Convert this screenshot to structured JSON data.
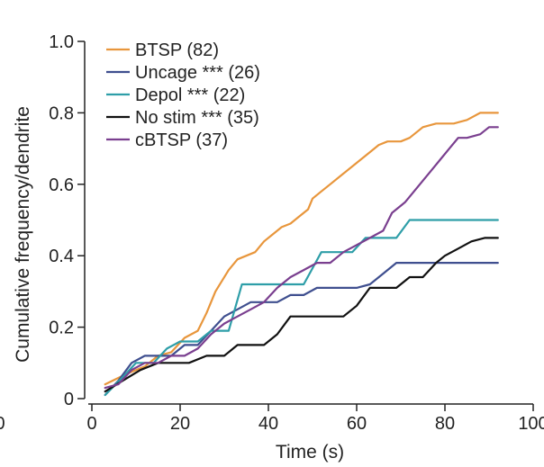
{
  "chart_data": {
    "type": "line",
    "title": "",
    "xlabel": "Time (s)",
    "ylabel": "Cumulative frequency/dendrite",
    "xlim": [
      0,
      100
    ],
    "ylim": [
      0,
      1.0
    ],
    "x_ticks": [
      0,
      20,
      40,
      60,
      80,
      100
    ],
    "x_tick_labels": [
      "0",
      "20",
      "40",
      "60",
      "80",
      "100"
    ],
    "stray_left_tick_label": "0",
    "y_ticks": [
      0,
      0.2,
      0.4,
      0.6,
      0.8,
      1.0
    ],
    "y_tick_labels": [
      "0",
      "0.2",
      "0.4",
      "0.6",
      "0.8",
      "1.0"
    ],
    "grid": false,
    "legend_position": "top-left",
    "series": [
      {
        "name": "BTSP (82)",
        "color": "#e8963c",
        "points": [
          [
            3,
            0.04
          ],
          [
            8,
            0.07
          ],
          [
            12,
            0.09
          ],
          [
            15,
            0.12
          ],
          [
            18,
            0.13
          ],
          [
            21,
            0.17
          ],
          [
            24,
            0.19
          ],
          [
            26,
            0.24
          ],
          [
            28,
            0.3
          ],
          [
            31,
            0.36
          ],
          [
            33,
            0.39
          ],
          [
            35,
            0.4
          ],
          [
            37,
            0.41
          ],
          [
            39,
            0.44
          ],
          [
            41,
            0.46
          ],
          [
            43,
            0.48
          ],
          [
            45,
            0.49
          ],
          [
            47,
            0.51
          ],
          [
            49,
            0.53
          ],
          [
            50,
            0.56
          ],
          [
            52,
            0.58
          ],
          [
            54,
            0.6
          ],
          [
            57,
            0.63
          ],
          [
            60,
            0.66
          ],
          [
            63,
            0.69
          ],
          [
            65,
            0.71
          ],
          [
            67,
            0.72
          ],
          [
            70,
            0.72
          ],
          [
            72,
            0.73
          ],
          [
            75,
            0.76
          ],
          [
            78,
            0.77
          ],
          [
            82,
            0.77
          ],
          [
            85,
            0.78
          ],
          [
            88,
            0.8
          ],
          [
            91,
            0.8
          ],
          [
            92,
            0.8
          ]
        ]
      },
      {
        "name": "Uncage *** (26)",
        "color": "#3f4f8f",
        "points": [
          [
            3,
            0.01
          ],
          [
            6,
            0.05
          ],
          [
            9,
            0.1
          ],
          [
            12,
            0.12
          ],
          [
            15,
            0.12
          ],
          [
            18,
            0.12
          ],
          [
            21,
            0.15
          ],
          [
            24,
            0.15
          ],
          [
            27,
            0.19
          ],
          [
            30,
            0.23
          ],
          [
            33,
            0.25
          ],
          [
            36,
            0.27
          ],
          [
            39,
            0.27
          ],
          [
            42,
            0.27
          ],
          [
            45,
            0.29
          ],
          [
            48,
            0.29
          ],
          [
            51,
            0.31
          ],
          [
            54,
            0.31
          ],
          [
            57,
            0.31
          ],
          [
            60,
            0.31
          ],
          [
            63,
            0.32
          ],
          [
            66,
            0.35
          ],
          [
            69,
            0.38
          ],
          [
            72,
            0.38
          ],
          [
            75,
            0.38
          ],
          [
            78,
            0.38
          ],
          [
            81,
            0.38
          ],
          [
            84,
            0.38
          ],
          [
            88,
            0.38
          ],
          [
            92,
            0.38
          ]
        ]
      },
      {
        "name": "Depol *** (22)",
        "color": "#2e9ea8",
        "points": [
          [
            3,
            0.01
          ],
          [
            7,
            0.06
          ],
          [
            10,
            0.1
          ],
          [
            14,
            0.1
          ],
          [
            17,
            0.14
          ],
          [
            20,
            0.16
          ],
          [
            24,
            0.16
          ],
          [
            27,
            0.19
          ],
          [
            31,
            0.19
          ],
          [
            34,
            0.32
          ],
          [
            38,
            0.32
          ],
          [
            41,
            0.32
          ],
          [
            45,
            0.32
          ],
          [
            48,
            0.32
          ],
          [
            52,
            0.41
          ],
          [
            55,
            0.41
          ],
          [
            59,
            0.41
          ],
          [
            62,
            0.45
          ],
          [
            65,
            0.45
          ],
          [
            69,
            0.45
          ],
          [
            72,
            0.5
          ],
          [
            76,
            0.5
          ],
          [
            80,
            0.5
          ],
          [
            84,
            0.5
          ],
          [
            88,
            0.5
          ],
          [
            92,
            0.5
          ]
        ]
      },
      {
        "name": "No stim *** (35)",
        "color": "#111111",
        "points": [
          [
            3,
            0.02
          ],
          [
            7,
            0.05
          ],
          [
            11,
            0.08
          ],
          [
            15,
            0.1
          ],
          [
            18,
            0.1
          ],
          [
            22,
            0.1
          ],
          [
            26,
            0.12
          ],
          [
            30,
            0.12
          ],
          [
            33,
            0.15
          ],
          [
            36,
            0.15
          ],
          [
            39,
            0.15
          ],
          [
            42,
            0.18
          ],
          [
            45,
            0.23
          ],
          [
            48,
            0.23
          ],
          [
            51,
            0.23
          ],
          [
            54,
            0.23
          ],
          [
            57,
            0.23
          ],
          [
            60,
            0.26
          ],
          [
            63,
            0.31
          ],
          [
            66,
            0.31
          ],
          [
            69,
            0.31
          ],
          [
            72,
            0.34
          ],
          [
            75,
            0.34
          ],
          [
            78,
            0.38
          ],
          [
            80,
            0.4
          ],
          [
            83,
            0.42
          ],
          [
            86,
            0.44
          ],
          [
            89,
            0.45
          ],
          [
            92,
            0.45
          ]
        ]
      },
      {
        "name": "cBTSP (37)",
        "color": "#7a3f8f",
        "points": [
          [
            3,
            0.03
          ],
          [
            6,
            0.04
          ],
          [
            9,
            0.08
          ],
          [
            12,
            0.1
          ],
          [
            15,
            0.1
          ],
          [
            18,
            0.12
          ],
          [
            21,
            0.12
          ],
          [
            24,
            0.14
          ],
          [
            27,
            0.18
          ],
          [
            30,
            0.21
          ],
          [
            33,
            0.23
          ],
          [
            36,
            0.25
          ],
          [
            39,
            0.27
          ],
          [
            42,
            0.31
          ],
          [
            45,
            0.34
          ],
          [
            48,
            0.36
          ],
          [
            51,
            0.38
          ],
          [
            54,
            0.38
          ],
          [
            57,
            0.41
          ],
          [
            60,
            0.43
          ],
          [
            63,
            0.45
          ],
          [
            66,
            0.47
          ],
          [
            68,
            0.52
          ],
          [
            71,
            0.55
          ],
          [
            73,
            0.58
          ],
          [
            75,
            0.61
          ],
          [
            77,
            0.64
          ],
          [
            79,
            0.67
          ],
          [
            81,
            0.7
          ],
          [
            83,
            0.73
          ],
          [
            85,
            0.73
          ],
          [
            88,
            0.74
          ],
          [
            90,
            0.76
          ],
          [
            92,
            0.76
          ]
        ]
      }
    ]
  }
}
